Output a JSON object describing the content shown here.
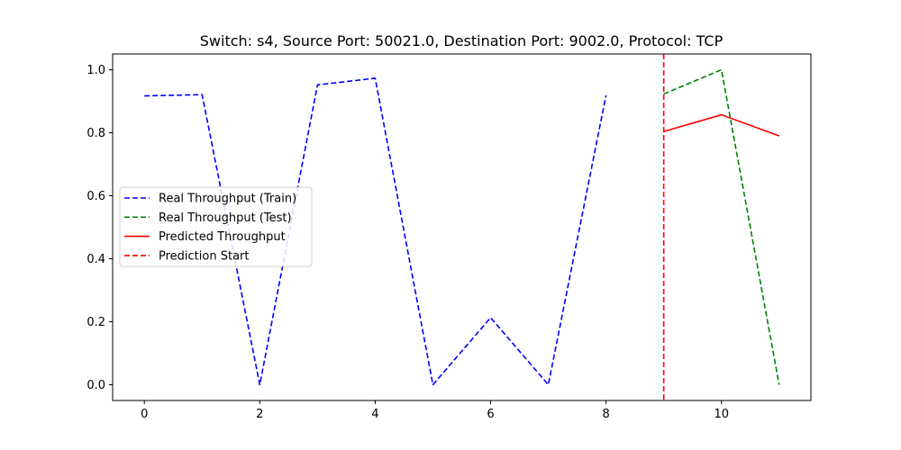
{
  "chart_data": {
    "type": "line",
    "title": "Switch: s4, Source Port: 50021.0, Destination Port: 9002.0, Protocol: TCP",
    "xlabel": "",
    "ylabel": "",
    "xlim": [
      -0.55,
      11.55
    ],
    "ylim": [
      -0.05,
      1.05
    ],
    "xticks": [
      0,
      2,
      4,
      6,
      8,
      10
    ],
    "yticks": [
      0.0,
      0.2,
      0.4,
      0.6,
      0.8,
      1.0
    ],
    "ytick_labels": [
      "0.0",
      "0.2",
      "0.4",
      "0.6",
      "0.8",
      "1.0"
    ],
    "grid": false,
    "legend_position": "center-left",
    "series": [
      {
        "name": "Real Throughput (Train)",
        "color": "#0000ff",
        "style": "dashed",
        "x": [
          0,
          1,
          2,
          3,
          4,
          5,
          6,
          7,
          8
        ],
        "y": [
          0.917,
          0.921,
          0.0,
          0.952,
          0.973,
          0.0,
          0.213,
          0.0,
          0.919
        ]
      },
      {
        "name": "Real Throughput (Test)",
        "color": "#008000",
        "style": "dashed",
        "x": [
          9,
          10,
          11
        ],
        "y": [
          0.923,
          1.0,
          0.0
        ]
      },
      {
        "name": "Predicted Throughput",
        "color": "#ff0000",
        "style": "solid",
        "x": [
          9,
          10,
          11
        ],
        "y": [
          0.804,
          0.857,
          0.79
        ]
      }
    ],
    "vlines": [
      {
        "name": "Prediction Start",
        "color": "#ff0000",
        "style": "dashed",
        "x": 9
      }
    ],
    "legend": [
      {
        "label": "Real Throughput (Train)",
        "color": "#0000ff",
        "style": "dashed"
      },
      {
        "label": "Real Throughput (Test)",
        "color": "#008000",
        "style": "dashed"
      },
      {
        "label": "Predicted Throughput",
        "color": "#ff0000",
        "style": "solid"
      },
      {
        "label": "Prediction Start",
        "color": "#ff0000",
        "style": "dashed"
      }
    ]
  }
}
